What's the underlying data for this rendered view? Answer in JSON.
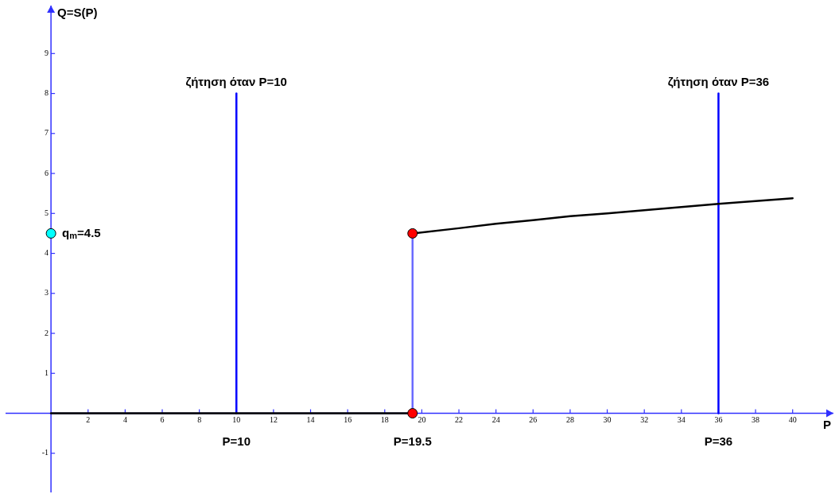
{
  "chart_data": {
    "type": "line",
    "xlabel": "P",
    "ylabel": "Q=S(P)",
    "xlim": [
      -2.45,
      42.2
    ],
    "ylim": [
      -1.98,
      10.2
    ],
    "xticks": [
      2,
      4,
      6,
      8,
      10,
      12,
      14,
      16,
      18,
      20,
      22,
      24,
      26,
      28,
      30,
      32,
      34,
      36,
      38,
      40
    ],
    "yticks": [
      -1,
      1,
      2,
      3,
      4,
      5,
      6,
      7,
      8,
      9
    ],
    "grid": false,
    "legend": false,
    "marker": "none",
    "series": [
      {
        "type": "line",
        "color": "#000000",
        "x": [
          0,
          19.5
        ],
        "values": [
          0,
          0
        ]
      },
      {
        "type": "line",
        "color": "#000000",
        "x": [
          19.5,
          22,
          24,
          26,
          28,
          30,
          32,
          34,
          36,
          38,
          40
        ],
        "values": [
          4.5,
          4.63,
          4.74,
          4.83,
          4.93,
          5.0,
          5.08,
          5.16,
          5.24,
          5.31,
          5.38
        ]
      },
      {
        "type": "line",
        "color": "#6a6aff",
        "x": [
          19.5,
          19.5
        ],
        "values": [
          0,
          4.5
        ]
      },
      {
        "type": "line",
        "color": "#0000ff",
        "x": [
          10,
          10
        ],
        "values": [
          0,
          8
        ]
      },
      {
        "type": "line",
        "color": "#0000ff",
        "x": [
          36,
          36
        ],
        "values": [
          0,
          8
        ]
      },
      {
        "type": "scatter",
        "marker": "circle",
        "color": "#ff0000",
        "x": [
          19.5,
          19.5
        ],
        "values": [
          4.5,
          0
        ]
      },
      {
        "type": "scatter",
        "marker": "circle",
        "color": "#00ffff",
        "x": [
          0
        ],
        "values": [
          4.5
        ]
      }
    ],
    "annotations": [
      {
        "text": "ζήτηση όταν P=10",
        "x": 10,
        "y": 8
      },
      {
        "text": "ζήτηση όταν P=36",
        "x": 36,
        "y": 8
      },
      {
        "text": "P=10",
        "x": 10,
        "y": 0
      },
      {
        "text": "P=19.5",
        "x": 19.5,
        "y": 0
      },
      {
        "text": "P=36",
        "x": 36,
        "y": 0
      },
      {
        "text": "q$_{m}$=4.5",
        "x": 0,
        "y": 4.5
      }
    ]
  }
}
